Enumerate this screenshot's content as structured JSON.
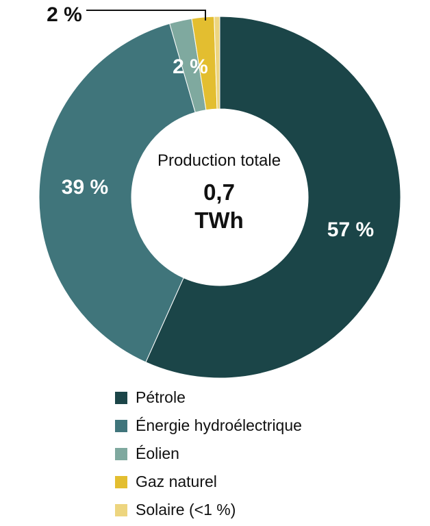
{
  "chart_data": {
    "type": "pie",
    "donut": true,
    "center_caption": "Production totale",
    "center_value_lines": [
      "0,7",
      "TWh"
    ],
    "categories": [
      "Pétrole",
      "Énergie hydroélectrique",
      "Éolien",
      "Gaz naturel",
      "Solaire (<1 %)"
    ],
    "values": [
      57,
      39,
      2,
      2,
      0.5
    ],
    "value_labels": [
      "57 %",
      "39 %",
      "2 %",
      "2 %",
      ""
    ],
    "colors": [
      "#1b4548",
      "#40757b",
      "#7fa99f",
      "#e3be30",
      "#edd57f"
    ],
    "legend_position": "bottom"
  }
}
